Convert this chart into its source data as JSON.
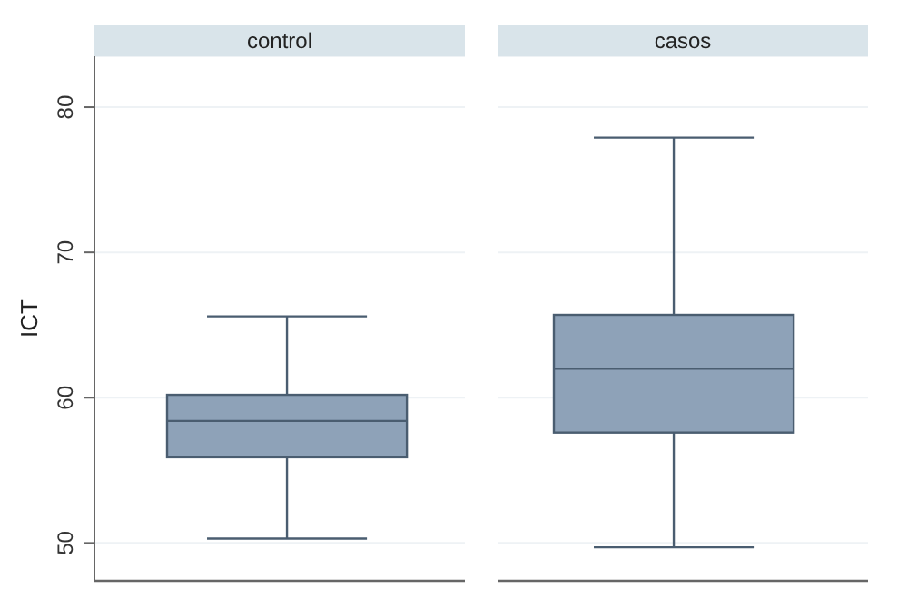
{
  "chart_data": {
    "type": "box",
    "ylabel": "ICT",
    "categories": [
      "control",
      "casos"
    ],
    "color": "#8ea2b8",
    "ylim": [
      47.4,
      83.5
    ],
    "yticks": [
      50,
      60,
      70,
      80
    ],
    "grid": "y",
    "boxes": [
      {
        "low": 50.3,
        "q1": 55.9,
        "median": 58.4,
        "q3": 60.2,
        "high": 65.6
      },
      {
        "low": 49.7,
        "q1": 57.6,
        "median": 62.0,
        "q3": 65.7,
        "high": 77.9
      }
    ]
  }
}
